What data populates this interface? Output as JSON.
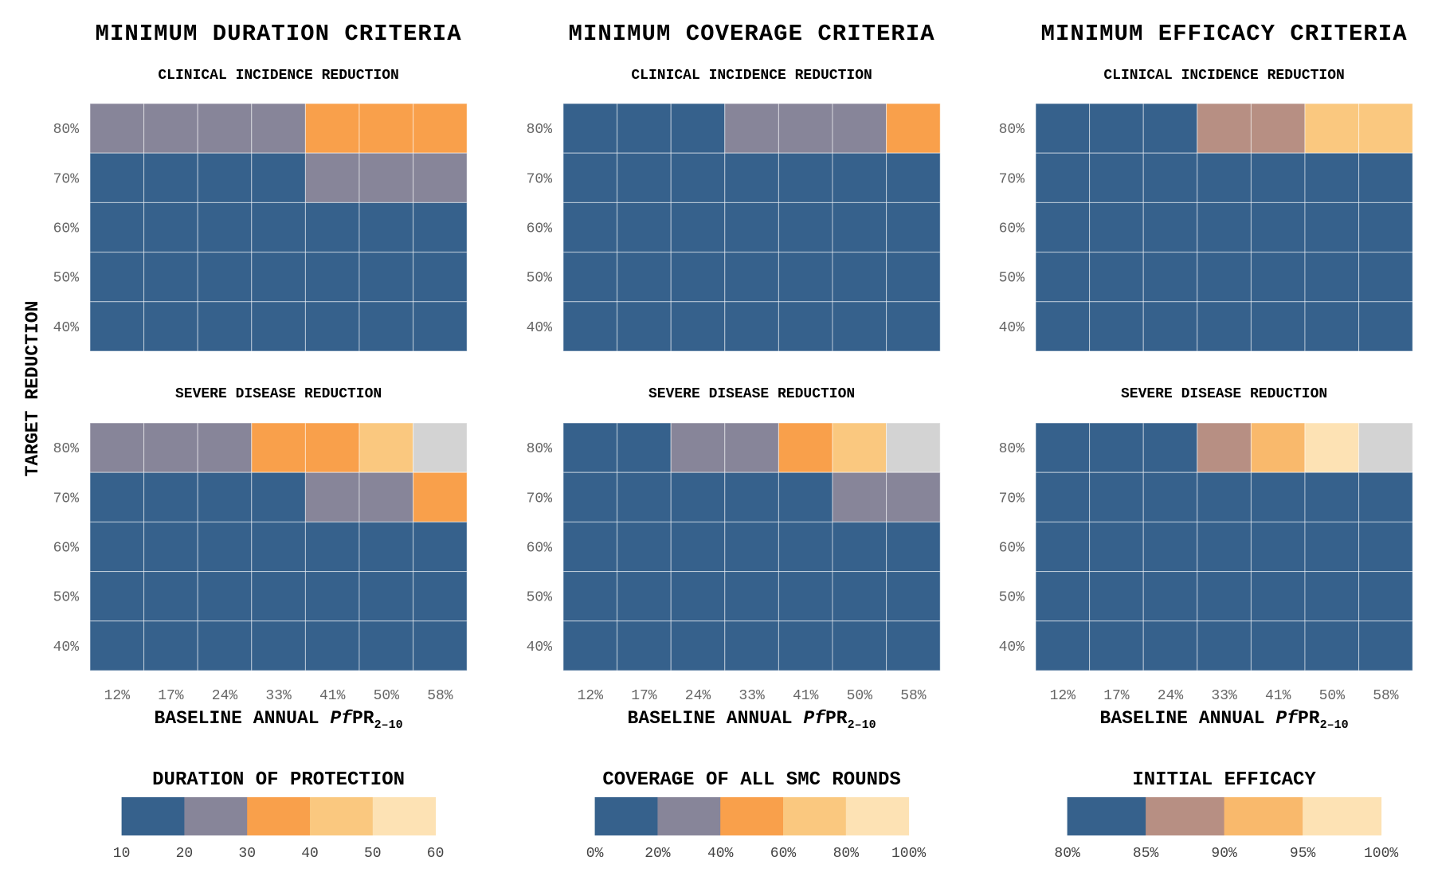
{
  "y_axis_label": "TARGET REDUCTION",
  "palette": {
    "blue": "#36618c",
    "slate": "#878599",
    "orange": "#f9a04b",
    "light_orange": "#fac87f",
    "cream": "#fde2b4",
    "grey": "#d3d3d3",
    "mauve": "#b78f83",
    "peach": "#f9b96c"
  },
  "chart_data": [
    {
      "type": "heatmap",
      "column_title": "MINIMUM DURATION CRITERIA",
      "x_tick_labels": [
        "12%",
        "17%",
        "24%",
        "33%",
        "41%",
        "50%",
        "58%"
      ],
      "y_tick_labels": [
        "80%",
        "70%",
        "60%",
        "50%",
        "40%"
      ],
      "xlabel": {
        "prefix": "BASELINE ANNUAL ",
        "italic": "Pf",
        "main": "PR",
        "subscript": "2–10"
      },
      "panels": [
        {
          "title": "CLINICAL INCIDENCE REDUCTION",
          "rows": [
            [
              "#878599",
              "#878599",
              "#878599",
              "#878599",
              "#f9a04b",
              "#f9a04b",
              "#f9a04b"
            ],
            [
              "#36618c",
              "#36618c",
              "#36618c",
              "#36618c",
              "#878599",
              "#878599",
              "#878599"
            ],
            [
              "#36618c",
              "#36618c",
              "#36618c",
              "#36618c",
              "#36618c",
              "#36618c",
              "#36618c"
            ],
            [
              "#36618c",
              "#36618c",
              "#36618c",
              "#36618c",
              "#36618c",
              "#36618c",
              "#36618c"
            ],
            [
              "#36618c",
              "#36618c",
              "#36618c",
              "#36618c",
              "#36618c",
              "#36618c",
              "#36618c"
            ]
          ]
        },
        {
          "title": "SEVERE DISEASE REDUCTION",
          "rows": [
            [
              "#878599",
              "#878599",
              "#878599",
              "#f9a04b",
              "#f9a04b",
              "#fac87f",
              "#d3d3d3"
            ],
            [
              "#36618c",
              "#36618c",
              "#36618c",
              "#36618c",
              "#878599",
              "#878599",
              "#f9a04b"
            ],
            [
              "#36618c",
              "#36618c",
              "#36618c",
              "#36618c",
              "#36618c",
              "#36618c",
              "#36618c"
            ],
            [
              "#36618c",
              "#36618c",
              "#36618c",
              "#36618c",
              "#36618c",
              "#36618c",
              "#36618c"
            ],
            [
              "#36618c",
              "#36618c",
              "#36618c",
              "#36618c",
              "#36618c",
              "#36618c",
              "#36618c"
            ]
          ]
        }
      ],
      "legend": {
        "title": "DURATION OF PROTECTION",
        "colors": [
          "#36618c",
          "#878599",
          "#f9a04b",
          "#fac87f",
          "#fde2b4"
        ],
        "tick_labels": [
          "10",
          "20",
          "30",
          "40",
          "50",
          "60"
        ]
      }
    },
    {
      "type": "heatmap",
      "column_title": "MINIMUM COVERAGE CRITERIA",
      "x_tick_labels": [
        "12%",
        "17%",
        "24%",
        "33%",
        "41%",
        "50%",
        "58%"
      ],
      "y_tick_labels": [
        "80%",
        "70%",
        "60%",
        "50%",
        "40%"
      ],
      "xlabel": {
        "prefix": "BASELINE ANNUAL ",
        "italic": "Pf",
        "main": "PR",
        "subscript": "2–10"
      },
      "panels": [
        {
          "title": "CLINICAL INCIDENCE REDUCTION",
          "rows": [
            [
              "#36618c",
              "#36618c",
              "#36618c",
              "#878599",
              "#878599",
              "#878599",
              "#f9a04b"
            ],
            [
              "#36618c",
              "#36618c",
              "#36618c",
              "#36618c",
              "#36618c",
              "#36618c",
              "#36618c"
            ],
            [
              "#36618c",
              "#36618c",
              "#36618c",
              "#36618c",
              "#36618c",
              "#36618c",
              "#36618c"
            ],
            [
              "#36618c",
              "#36618c",
              "#36618c",
              "#36618c",
              "#36618c",
              "#36618c",
              "#36618c"
            ],
            [
              "#36618c",
              "#36618c",
              "#36618c",
              "#36618c",
              "#36618c",
              "#36618c",
              "#36618c"
            ]
          ]
        },
        {
          "title": "SEVERE DISEASE REDUCTION",
          "rows": [
            [
              "#36618c",
              "#36618c",
              "#878599",
              "#878599",
              "#f9a04b",
              "#fac87f",
              "#d3d3d3"
            ],
            [
              "#36618c",
              "#36618c",
              "#36618c",
              "#36618c",
              "#36618c",
              "#878599",
              "#878599"
            ],
            [
              "#36618c",
              "#36618c",
              "#36618c",
              "#36618c",
              "#36618c",
              "#36618c",
              "#36618c"
            ],
            [
              "#36618c",
              "#36618c",
              "#36618c",
              "#36618c",
              "#36618c",
              "#36618c",
              "#36618c"
            ],
            [
              "#36618c",
              "#36618c",
              "#36618c",
              "#36618c",
              "#36618c",
              "#36618c",
              "#36618c"
            ]
          ]
        }
      ],
      "legend": {
        "title": "COVERAGE OF ALL SMC ROUNDS",
        "colors": [
          "#36618c",
          "#878599",
          "#f9a04b",
          "#fac87f",
          "#fde2b4"
        ],
        "tick_labels": [
          "0%",
          "20%",
          "40%",
          "60%",
          "80%",
          "100%"
        ]
      }
    },
    {
      "type": "heatmap",
      "column_title": "MINIMUM EFFICACY CRITERIA",
      "x_tick_labels": [
        "12%",
        "17%",
        "24%",
        "33%",
        "41%",
        "50%",
        "58%"
      ],
      "y_tick_labels": [
        "80%",
        "70%",
        "60%",
        "50%",
        "40%"
      ],
      "xlabel": {
        "prefix": "BASELINE ANNUAL ",
        "italic": "Pf",
        "main": "PR",
        "subscript": "2–10"
      },
      "panels": [
        {
          "title": "CLINICAL INCIDENCE REDUCTION",
          "rows": [
            [
              "#36618c",
              "#36618c",
              "#36618c",
              "#b78f83",
              "#b78f83",
              "#fac87f",
              "#fac87f"
            ],
            [
              "#36618c",
              "#36618c",
              "#36618c",
              "#36618c",
              "#36618c",
              "#36618c",
              "#36618c"
            ],
            [
              "#36618c",
              "#36618c",
              "#36618c",
              "#36618c",
              "#36618c",
              "#36618c",
              "#36618c"
            ],
            [
              "#36618c",
              "#36618c",
              "#36618c",
              "#36618c",
              "#36618c",
              "#36618c",
              "#36618c"
            ],
            [
              "#36618c",
              "#36618c",
              "#36618c",
              "#36618c",
              "#36618c",
              "#36618c",
              "#36618c"
            ]
          ]
        },
        {
          "title": "SEVERE DISEASE REDUCTION",
          "rows": [
            [
              "#36618c",
              "#36618c",
              "#36618c",
              "#b78f83",
              "#f9b96c",
              "#fde2b4",
              "#d3d3d3"
            ],
            [
              "#36618c",
              "#36618c",
              "#36618c",
              "#36618c",
              "#36618c",
              "#36618c",
              "#36618c"
            ],
            [
              "#36618c",
              "#36618c",
              "#36618c",
              "#36618c",
              "#36618c",
              "#36618c",
              "#36618c"
            ],
            [
              "#36618c",
              "#36618c",
              "#36618c",
              "#36618c",
              "#36618c",
              "#36618c",
              "#36618c"
            ],
            [
              "#36618c",
              "#36618c",
              "#36618c",
              "#36618c",
              "#36618c",
              "#36618c",
              "#36618c"
            ]
          ]
        }
      ],
      "legend": {
        "title": "INITIAL EFFICACY",
        "colors": [
          "#36618c",
          "#b78f83",
          "#f9b96c",
          "#fde2b4"
        ],
        "tick_labels": [
          "80%",
          "85%",
          "90%",
          "95%",
          "100%"
        ]
      }
    }
  ]
}
